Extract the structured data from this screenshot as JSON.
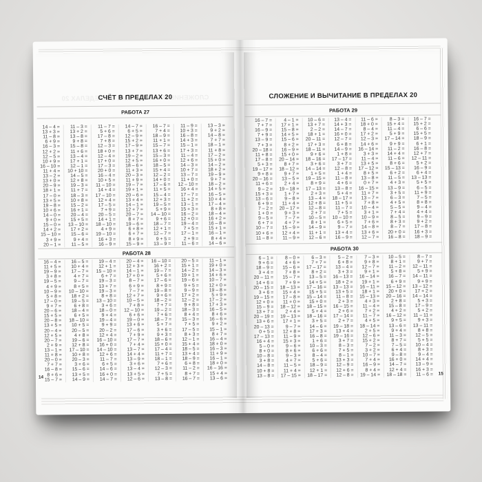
{
  "colors": {
    "background": "#e5e4e2",
    "paper": "#fbfbfa",
    "text": "#3e3e3e",
    "rule": "#c9c8c6"
  },
  "page": {
    "left": {
      "header": "СЧЁТ В ПРЕДЕЛАХ 20",
      "number": "14",
      "sections": [
        {
          "title": "РАБОТА 27",
          "columns": [
            [
              "14 – 4 =",
              "13 + 3 =",
              "11 – 8 =",
              "6 + 9 =",
              "16 – 3 =",
              "12 + 2 =",
              "12 – 5 =",
              "10 + 9 =",
              "16 – 10 =",
              "11 + 4 =",
              "13 – 2 =",
              "13 + 0 =",
              "20 – 9 =",
              "18 + 1 =",
              "17 – 0 =",
              "13 + 5 =",
              "19 – 8 =",
              "10 + 6 =",
              "14 – 0 =",
              "9 + 0 =",
              "15 – 0 =",
              "14 + 2 =",
              "15 – 10 =",
              "3 + 9 =",
              "20 – 1 ="
            ],
            [
              "11 – 3 =",
              "13 + 2 =",
              "13 – 8 =",
              "9 + 8 =",
              "15 – 8 =",
              "11 + 6 =",
              "13 – 4 =",
              "17 + 1 =",
              "12 – 1 =",
              "10 + 10 =",
              "14 – 5 =",
              "12 + 8 =",
              "19 – 3 =",
              "11 + 7 =",
              "18 – 3 =",
              "10 + 8 =",
              "15 – 2 =",
              "16 + 1 =",
              "20 – 4 =",
              "15 + 5 =",
              "13 – 10 =",
              "17 + 2 =",
              "15 – 6 =",
              "9 + 4 =",
              "11 – 5 ="
            ],
            [
              "11 – 7 =",
              "5 + 6 =",
              "17 – 8 =",
              "7 + 8 =",
              "12 – 3 =",
              "18 + 0 =",
              "12 – 4 =",
              "17 + 0 =",
              "17 – 3 =",
              "20 + 0 =",
              "16 – 4 =",
              "10 + 5 =",
              "11 – 10 =",
              "14 + 4 =",
              "17 – 10 =",
              "12 + 4 =",
              "17 – 5 =",
              "7 + 9 =",
              "20 – 5 =",
              "14 + 1 =",
              "18 – 10 =",
              "4 + 9 =",
              "19 – 10 =",
              "16 + 3 =",
              "16 – 9 ="
            ],
            [
              "14 – 7 =",
              "6 + 5 =",
              "12 – 9 =",
              "15 + 2 =",
              "17 – 9 =",
              "13 + 7 =",
              "19 – 2 =",
              "12 + 5 =",
              "18 – 6 =",
              "11 + 3 =",
              "20 – 3 =",
              "11 + 9 =",
              "19 – 7 =",
              "19 + 1 =",
              "20 – 6 =",
              "13 + 4 =",
              "14 – 1 =",
              "12 + 7 =",
              "20 – 7 =",
              "8 + 7 =",
              "19 – 6 =",
              "6 + 8 =",
              "6 + 7 =",
              "8 + 9 =",
              "15 – 9 ="
            ],
            [
              "16 – 7 =",
              "7 + 4 =",
              "18 – 9 =",
              "11 + 1 =",
              "15 – 7 =",
              "13 + 6 =",
              "15 – 3 =",
              "16 + 0 =",
              "18 – 5 =",
              "15 + 4 =",
              "12 – 2 =",
              "14 + 0 =",
              "17 – 6 =",
              "11 + 5 =",
              "15 – 4 =",
              "12 + 3 =",
              "19 – 5 =",
              "5 + 9 =",
              "14 – 10 =",
              "9 + 6 =",
              "18 – 7 =",
              "12 + 1 =",
              "12 – 7 =",
              "9 + 5 =",
              "13 – 9 ="
            ],
            [
              "11 – 9 =",
              "10 + 3 =",
              "16 – 8 =",
              "14 + 3 =",
              "15 – 1 =",
              "17 + 3 =",
              "11 – 4 =",
              "12 + 6 =",
              "14 – 3 =",
              "10 + 7 =",
              "13 – 7 =",
              "11 + 0 =",
              "12 – 10 =",
              "16 + 4 =",
              "17 – 7 =",
              "11 + 2 =",
              "13 – 1 =",
              "15 + 3 =",
              "16 – 2 =",
              "12 + 0 =",
              "19 – 4 =",
              "7 + 5 =",
              "17 – 1 =",
              "2 + 9 =",
              "11 – 6 ="
            ],
            [
              "13 – 3 =",
              "9 + 2 =",
              "14 – 8 =",
              "7 + 7 =",
              "18 – 1 =",
              "11 + 8 =",
              "17 – 2 =",
              "15 + 0 =",
              "14 – 2 =",
              "18 + 2 =",
              "19 – 9 =",
              "9 + 7 =",
              "18 – 2 =",
              "14 + 5 =",
              "16 – 5 =",
              "10 + 4 =",
              "17 – 4 =",
              "8 + 8 =",
              "18 – 4 =",
              "16 + 2 =",
              "16 – 8 =",
              "15 + 1 =",
              "16 – 1 =",
              "8 + 4 =",
              "14 – 6 ="
            ]
          ]
        },
        {
          "title": "РАБОТА 28",
          "columns": [
            [
              "16 – 4 =",
              "11 + 5 =",
              "19 – 9 =",
              "3 + 8 =",
              "19 – 5 =",
              "4 + 9 =",
              "10 – 9 =",
              "5 + 8 =",
              "17 – 0 =",
              "9 + 7 =",
              "20 – 6 =",
              "15 + 5 =",
              "20 – 8 =",
              "13 + 5 =",
              "20 – 4 =",
              "12 + 5 =",
              "20 – 7 =",
              "2 + 9 =",
              "13 – 1 =",
              "11 + 8 =",
              "20 – 0 =",
              "7 + 7 =",
              "16 – 8 =",
              "8 + 6 =",
              "15 – 7 ="
            ],
            [
              "16 – 5 =",
              "10 + 4 =",
              "17 – 7 =",
              "4 + 7 =",
              "9 – 7 =",
              "8 + 5 =",
              "10 – 10 =",
              "18 + 2 =",
              "19 – 5 =",
              "6 + 8 =",
              "18 – 4 =",
              "6 + 5 =",
              "18 – 10 =",
              "10 + 5 =",
              "20 – 5 =",
              "4 + 8 =",
              "19 – 6 =",
              "12 + 8 =",
              "17 – 10 =",
              "10 + 8 =",
              "20 – 3 =",
              "3 + 6 =",
              "15 – 6 =",
              "13 + 5 =",
              "14 – 9 ="
            ],
            [
              "19 – 4 =",
              "12 + 1 =",
              "15 – 10 =",
              "6 + 7 =",
              "19 – 3 =",
              "13 + 7 =",
              "19 – 3 =",
              "8 + 8 =",
              "13 – 10 =",
              "3 + 6 =",
              "18 – 0 =",
              "9 + 4 =",
              "19 – 4 =",
              "9 + 9 =",
              "20 – 2 =",
              "12 + 4 =",
              "16 – 10 =",
              "16 + 0 =",
              "14 – 10 =",
              "12 + 6 =",
              "11 – 7 =",
              "6 + 5 =",
              "14 – 6 =",
              "16 + 0 =",
              "14 – 7 ="
            ],
            [
              "20 – 4 =",
              "12 + 3 =",
              "14 – 1 =",
              "17 + 0 =",
              "8 – 7 =",
              "6 + 9 =",
              "7 – 7 =",
              "12 + 7 =",
              "10 – 5 =",
              "7 + 8 =",
              "12 – 10 =",
              "6 + 6 =",
              "19 – 0 =",
              "13 + 6 =",
              "17 – 6 =",
              "7 + 9 =",
              "17 – 7 =",
              "7 + 4 =",
              "13 – 7 =",
              "14 + 4 =",
              "13 – 9 =",
              "3 + 6 =",
              "13 – 4 =",
              "13 + 5 =",
              "12 – 6 ="
            ],
            [
              "16 – 10 =",
              "16 + 2 =",
              "19 – 7 =",
              "5 + 6 =",
              "17 – 6 =",
              "8 + 9 =",
              "19 – 8 =",
              "9 + 6 =",
              "18 – 2 =",
              "7 + 7 =",
              "19 – 2 =",
              "7 + 6 =",
              "18 – 7 =",
              "5 + 7 =",
              "3 + 6 =",
              "9 + 3 =",
              "18 – 6 =",
              "15 + 0 =",
              "17 – 4 =",
              "11 + 7 =",
              "18 – 1 =",
              "7 + 6 =",
              "12 – 3 =",
              "7 + 5 =",
              "13 – 8 ="
            ],
            [
              "20 – 5 =",
              "15 + 1 =",
              "14 – 2 =",
              "19 + 1 =",
              "19 – 6 =",
              "9 + 5 =",
              "9 – 9 =",
              "17 + 2 =",
              "12 – 2 =",
              "9 + 8 =",
              "18 – 3 =",
              "8 + 4 =",
              "15 – 3 =",
              "7 + 5 =",
              "17 – 5 =",
              "8 + 3 =",
              "12 – 1 =",
              "15 + 4 =",
              "18 – 5 =",
              "13 + 4 =",
              "18 – 9 =",
              "6 + 8 =",
              "11 – 2 =",
              "8 + 7 =",
              "16 – 7 ="
            ],
            [
              "11 – 1 =",
              "19 + 0 =",
              "14 – 3 =",
              "14 + 6 =",
              "10 – 7 =",
              "12 + 0 =",
              "19 – 8 =",
              "5 + 9 =",
              "17 – 2 =",
              "17 + 3 =",
              "16 – 5 =",
              "8 + 6 =",
              "16 – 6 =",
              "9 + 2 =",
              "15 – 1 =",
              "8 + 7 =",
              "16 – 4 =",
              "18 + 0 =",
              "16 – 3 =",
              "11 + 9 =",
              "16 – 1 =",
              "18 + 0 =",
              "16 – 16 =",
              "15 + 4 =",
              "13 – 6 ="
            ]
          ]
        }
      ]
    },
    "right": {
      "header": "СЛОЖЕНИЕ И ВЫЧИТАНИЕ В ПРЕДЕЛАХ 20",
      "number": "15",
      "sections": [
        {
          "title": "РАБОТА 29",
          "columns": [
            [
              "16 – 7 =",
              "7 + 7 =",
              "16 – 9 =",
              "7 + 9 =",
              "13 – 9 =",
              "7 + 3 =",
              "20 – 18 =",
              "11 + 8 =",
              "17 – 8 =",
              "5 + 3 =",
              "19 – 17 =",
              "9 + 8 =",
              "20 – 16 =",
              "11 + 6 =",
              "9 – 2 =",
              "15 + 3 =",
              "13 – 6 =",
              "6 + 9 =",
              "7 – 2 =",
              "1 + 0 =",
              "9 – 5 =",
              "6 + 7 =",
              "10 – 7 =",
              "10 + 6 =",
              "11 – 8 ="
            ],
            [
              "4 – 1 =",
              "17 + 1 =",
              "15 – 8 =",
              "14 + 5 =",
              "15 – 6 =",
              "8 + 2 =",
              "16 – 9 =",
              "15 + 0 =",
              "20 – 14 =",
              "8 + 7 =",
              "18 – 12 =",
              "9 + 7 =",
              "13 – 5 =",
              "2 + 4 =",
              "19 – 18 =",
              "1 + 7 =",
              "9 – 8 =",
              "11 + 4 =",
              "20 – 17 =",
              "9 + 3 =",
              "7 – 7 =",
              "4 + 7 =",
              "15 – 9 =",
              "12 + 4 =",
              "11 – 9 ="
            ],
            [
              "10 – 6 =",
              "13 + 7 =",
              "2 – 2 =",
              "18 + 1 =",
              "20 – 11 =",
              "17 + 3 =",
              "18 – 11 =",
              "9 + 6 =",
              "18 – 16 =",
              "3 + 6 =",
              "14 – 14 =",
              "1 + 5 =",
              "19 – 15 =",
              "8 + 9 =",
              "17 – 13 =",
              "2 + 3 =",
              "13 – 4 =",
              "12 + 8 =",
              "12 – 8 =",
              "2 + 7 =",
              "10 – 5 =",
              "8 + 1 =",
              "14 – 9 =",
              "11 + 1 =",
              "12 – 6 ="
            ],
            [
              "13 – 4 =",
              "14 + 3 =",
              "14 – 7 =",
              "16 + 0 =",
              "12 – 7 =",
              "6 + 8 =",
              "14 – 9 =",
              "1 + 8 =",
              "17 – 17 =",
              "3 + 7 =",
              "12 – 8 =",
              "1 + 4 =",
              "11 – 8 =",
              "4 + 6 =",
              "13 – 8 =",
              "5 + 4 =",
              "18 – 17 =",
              "11 + 5 =",
              "11 – 7 =",
              "7 + 5 =",
              "10 – 10 =",
              "6 + 5 =",
              "9 – 7 =",
              "13 + 4 =",
              "16 – 9 ="
            ],
            [
              "11 – 6 =",
              "18 + 0 =",
              "8 – 4 =",
              "17 + 2 =",
              "12 – 3 =",
              "14 + 6 =",
              "16 – 14 =",
              "3 + 3 =",
              "11 – 4 =",
              "13 + 5 =",
              "17 – 12 =",
              "8 + 5 =",
              "13 – 8 =",
              "0 + 7 =",
              "16 – 15 =",
              "11 + 7 =",
              "13 – 7 =",
              "7 + 8 =",
              "10 – 4 =",
              "3 + 1 =",
              "10 – 9 =",
              "7 + 6 =",
              "14 – 8 =",
              "13 + 6 =",
              "12 – 7 ="
            ],
            [
              "8 – 3 =",
              "15 + 4 =",
              "11 – 4 =",
              "5 + 9 =",
              "17 – 14 =",
              "9 + 9 =",
              "11 – 2 =",
              "14 + 4 =",
              "11 – 6 =",
              "8 + 6 =",
              "15 – 13 =",
              "6 + 2 =",
              "11 – 5 =",
              "4 + 3 =",
              "13 – 9 =",
              "3 + 5 =",
              "6 – 3 =",
              "4 + 5 =",
              "5 – 5 =",
              "7 + 4 =",
              "8 – 5 =",
              "8 + 3 =",
              "8 – 7 =",
              "20 + 0 =",
              "16 – 8 ="
            ],
            [
              "16 – 7 =",
              "15 + 2 =",
              "6 – 6 =",
              "15 + 5 =",
              "18 – 9 =",
              "6 + 1 =",
              "16 – 8 =",
              "12 + 7 =",
              "12 – 11 =",
              "5 + 2 =",
              "16 – 9 =",
              "6 + 4 =",
              "13 – 13 =",
              "5 + 5 =",
              "6 – 5 =",
              "11 + 9 =",
              "7 – 5 =",
              "8 + 8 =",
              "9 – 4 =",
              "4 + 4 =",
              "9 – 9 =",
              "9 + 2 =",
              "17 – 8 =",
              "16 + 3 =",
              "18 – 9 ="
            ]
          ]
        },
        {
          "title": "РАБОТА 30",
          "columns": [
            [
              "6 – 1 =",
              "9 + 6 =",
              "18 – 9 =",
              "3 + 4 =",
              "20 – 11 =",
              "14 + 6 =",
              "20 – 15 =",
              "3 + 6 =",
              "19 – 15 =",
              "12 + 0 =",
              "15 – 9 =",
              "13 + 7 =",
              "20 – 19 =",
              "13 + 6 =",
              "20 – 13 =",
              "0 + 5 =",
              "17 – 13 =",
              "16 + 4 =",
              "5 – 0 =",
              "8 + 0 =",
              "10 – 8 =",
              "3 + 8 =",
              "14 – 8 =",
              "10 + 8 =",
              "13 – 8 ="
            ],
            [
              "8 – 0 =",
              "4 + 6 =",
              "15 – 6 =",
              "7 + 8 =",
              "15 – 7 =",
              "7 + 9 =",
              "18 – 13 =",
              "15 + 4 =",
              "17 – 8 =",
              "11 + 0 =",
              "18 – 12 =",
              "2 + 4 =",
              "19 – 13 =",
              "17 + 1 =",
              "9 – 7 =",
              "12 + 8 =",
              "11 – 9 =",
              "15 + 3 =",
              "9 – 6 =",
              "8 + 6 =",
              "9 – 3 =",
              "4 + 7 =",
              "11 – 5 =",
              "11 + 4 =",
              "17 – 15 ="
            ],
            [
              "6 – 3 =",
              "7 + 7 =",
              "17 – 17 =",
              "8 + 2 =",
              "13 – 5 =",
              "14 + 5 =",
              "17 – 16 =",
              "15 + 5 =",
              "15 – 14 =",
              "15 + 0 =",
              "18 – 15 =",
              "5 + 4 =",
              "18 – 16 =",
              "3 + 5 =",
              "14 – 6 =",
              "17 + 3 =",
              "16 – 8 =",
              "1 + 6 =",
              "10 – 3 =",
              "6 + 6 =",
              "8 – 4 =",
              "5 + 6 =",
              "18 – 9 =",
              "12 + 1 =",
              "18 – 17 ="
            ],
            [
              "5 – 2 =",
              "6 + 8 =",
              "13 – 4 =",
              "3 + 3 =",
              "16 – 13 =",
              "18 + 2 =",
              "13 – 13 =",
              "13 + 5 =",
              "11 – 8 =",
              "2 + 3 =",
              "16 – 15 =",
              "2 + 6 =",
              "17 – 14 =",
              "2 + 7 =",
              "19 – 18 =",
              "13 + 4 =",
              "19 – 16 =",
              "3 + 7 =",
              "8 – 3 =",
              "7 + 5 =",
              "8 – 1 =",
              "13 + 3 =",
              "12 – 9 =",
              "12 + 6 =",
              "12 – 8 ="
            ],
            [
              "7 – 3 =",
              "9 + 8 =",
              "12 – 7 =",
              "9 + 1 =",
              "16 – 14 =",
              "19 + 1 =",
              "16 – 11 =",
              "18 + 1 =",
              "15 – 13 =",
              "4 + 3 =",
              "11 – 4 =",
              "7 + 2 =",
              "11 – 7 =",
              "4 + 5 =",
              "18 – 14 =",
              "2 + 5 =",
              "12 – 6 =",
              "15 + 2 =",
              "7 – 2 =",
              "3 + 2 =",
              "10 – 7 =",
              "7 + 4 =",
              "16 – 9 =",
              "8 + 4 =",
              "19 – 14 ="
            ],
            [
              "10 – 5 =",
              "8 + 1 =",
              "11 – 2 =",
              "5 + 8 =",
              "16 – 7 =",
              "6 + 9 =",
              "15 – 12 =",
              "20 + 0 =",
              "20 – 16 =",
              "2 + 8 =",
              "15 – 8 =",
              "4 + 2 =",
              "16 – 12 =",
              "9 + 5 =",
              "13 – 6 =",
              "9 + 4 =",
              "11 – 3 =",
              "8 + 7 =",
              "7 – 5 =",
              "6 + 4 =",
              "9 – 8 =",
              "16 + 0 =",
              "14 – 7 =",
              "12 + 4 =",
              "18 – 18 ="
            ],
            [
              "8 – 7 =",
              "9 + 7 =",
              "12 – 11 =",
              "5 + 9 =",
              "14 – 11 =",
              "9 + 9 =",
              "13 – 12 =",
              "17 + 2 =",
              "14 – 14 =",
              "5 + 3 =",
              "17 – 9 =",
              "5 + 2 =",
              "11 – 11 =",
              "9 + 3 =",
              "13 – 11 =",
              "8 + 8 =",
              "12 – 5 =",
              "5 + 5 =",
              "10 – 4 =",
              "8 + 3 =",
              "9 – 4 =",
              "14 + 4 =",
              "13 – 9 =",
              "16 + 3 =",
              "11 – 6 ="
            ]
          ]
        }
      ]
    }
  }
}
